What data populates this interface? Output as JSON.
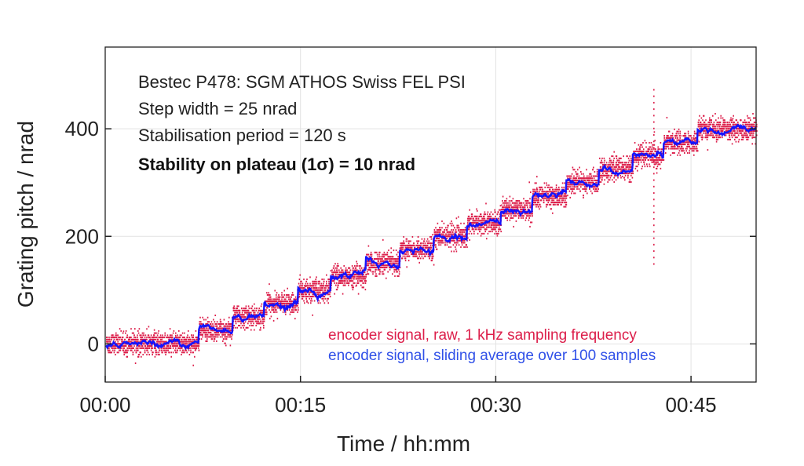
{
  "chart_data": {
    "type": "line",
    "xlabel": "Time / hh:mm",
    "ylabel": "Grating pitch / nrad",
    "xlim_minutes": [
      0,
      50
    ],
    "ylim": [
      -71,
      552
    ],
    "x_ticks": [
      {
        "minutes": 0,
        "label": "00:00"
      },
      {
        "minutes": 15,
        "label": "00:15"
      },
      {
        "minutes": 30,
        "label": "00:30"
      },
      {
        "minutes": 45,
        "label": "00:45"
      }
    ],
    "y_ticks": [
      {
        "value": 0,
        "label": "0"
      },
      {
        "value": 200,
        "label": "200"
      },
      {
        "value": 400,
        "label": "400"
      }
    ],
    "grid": true,
    "annotations": [
      "Bestec P478: SGM ATHOS Swiss FEL PSI",
      "Step width = 25 nrad",
      "Stabilisation period = 120 s",
      "Stability on plateau (1σ) = 10 nrad"
    ],
    "legend_placement": "bottom-right",
    "series": [
      {
        "name": "encoder signal, raw, 1 kHz sampling frequency",
        "color": "#dc1e4a",
        "noise_sigma": 10
      },
      {
        "name": "encoder signal, sliding average over 100 samples",
        "color": "#1414ff"
      }
    ],
    "step_start_minutes": [
      0,
      7.2,
      9.8,
      12.2,
      14.8,
      17.3,
      20.0,
      22.6,
      25.2,
      27.8,
      30.4,
      32.8,
      35.4,
      37.9,
      40.5,
      42.9,
      45.5
    ],
    "step_levels": [
      0,
      25,
      50,
      75,
      100,
      125,
      150,
      175,
      200,
      225,
      250,
      275,
      300,
      325,
      350,
      375,
      400
    ]
  }
}
